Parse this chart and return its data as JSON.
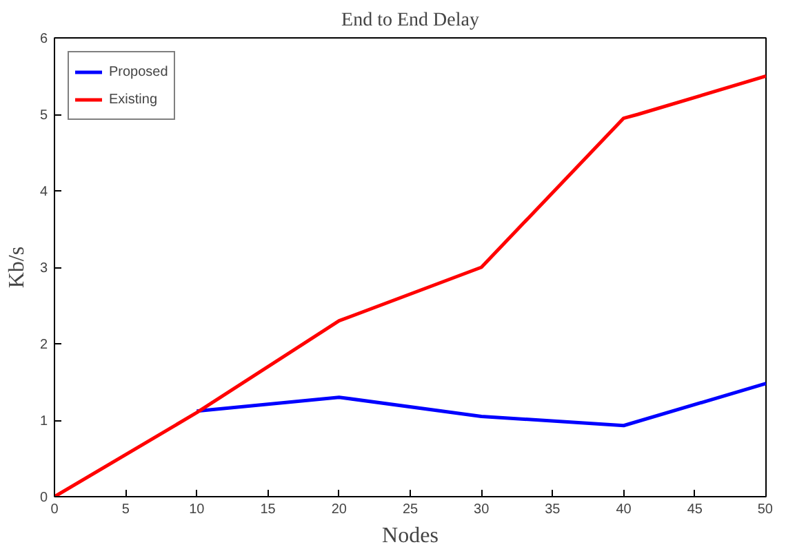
{
  "chart_data": {
    "type": "line",
    "title": "End to End Delay",
    "xlabel": "Nodes",
    "ylabel": "Kb/s",
    "xlim": [
      0,
      50
    ],
    "ylim": [
      0,
      6
    ],
    "xticks": [
      0,
      5,
      10,
      15,
      20,
      25,
      30,
      35,
      40,
      45,
      50
    ],
    "yticks": [
      0,
      1,
      2,
      3,
      4,
      5,
      6
    ],
    "grid": false,
    "legend": "top left",
    "series": [
      {
        "name": "Proposed",
        "color": "#0000ff",
        "x": [
          10,
          20,
          30,
          40,
          50
        ],
        "values": [
          1.12,
          1.3,
          1.05,
          0.93,
          1.48
        ]
      },
      {
        "name": "Existing",
        "color": "#ff0000",
        "x": [
          0,
          10,
          20,
          30,
          40,
          41,
          50
        ],
        "values": [
          0,
          1.1,
          2.3,
          3.0,
          4.95,
          5.0,
          5.5
        ]
      }
    ]
  }
}
